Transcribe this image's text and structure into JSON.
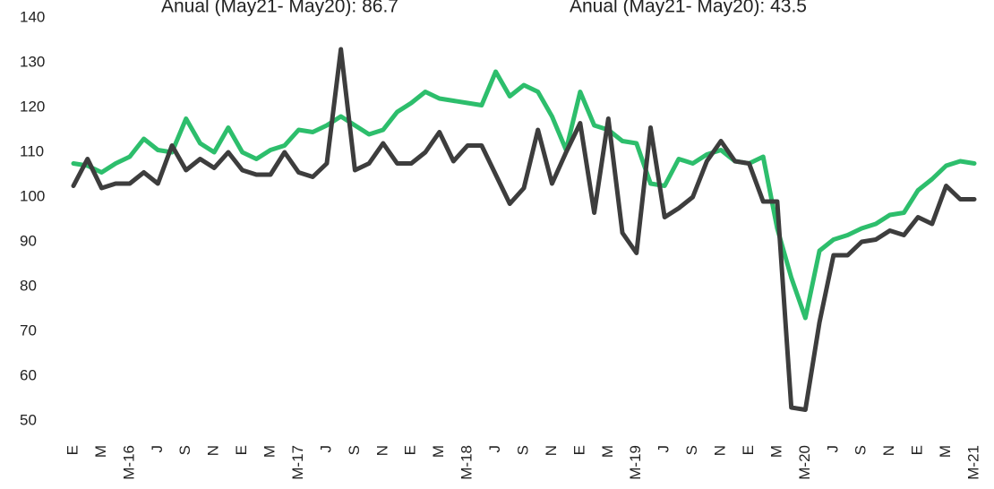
{
  "chart_data": {
    "type": "line",
    "annotations": [
      "Anual (May21- May20): 86.7",
      "Anual (May21- May20): 43.5"
    ],
    "categories": [
      "E",
      null,
      "M",
      null,
      "M-16",
      null,
      "J",
      null,
      "S",
      null,
      "N",
      null,
      "E",
      null,
      "M",
      null,
      "M-17",
      null,
      "J",
      null,
      "S",
      null,
      "N",
      null,
      "E",
      null,
      "M",
      null,
      "M-18",
      null,
      "J",
      null,
      "S",
      null,
      "N",
      null,
      "E",
      null,
      "M",
      null,
      "M-19",
      null,
      "J",
      null,
      "S",
      null,
      "N",
      null,
      "E",
      null,
      "M",
      null,
      "M-20",
      null,
      "J",
      null,
      "S",
      null,
      "N",
      null,
      "E",
      null,
      "M",
      null,
      "M-21"
    ],
    "series": [
      {
        "color": "#2dbe6c",
        "values": [
          107.5,
          107,
          105.5,
          107.5,
          109,
          113,
          110.5,
          110,
          117.5,
          112,
          110,
          115.5,
          110,
          108.5,
          110.5,
          111.5,
          115,
          114.5,
          116,
          118,
          116,
          114,
          115,
          119,
          121,
          123.5,
          122,
          121.5,
          121,
          120.5,
          128,
          122.5,
          125,
          123.5,
          118,
          110.5,
          123.5,
          116,
          115,
          112.5,
          112,
          103,
          102.5,
          108.5,
          107.5,
          109.5,
          110.5,
          108,
          107.5,
          109,
          93,
          82,
          73,
          88,
          90.5,
          91.5,
          93,
          94,
          96,
          96.5,
          101.5,
          104,
          107,
          108,
          107.5
        ]
      },
      {
        "color": "#3d3d3d",
        "values": [
          102.5,
          108.5,
          102,
          103,
          103,
          105.5,
          103,
          111.5,
          106,
          108.5,
          106.5,
          110,
          106,
          105,
          105,
          110,
          105.5,
          104.5,
          107.5,
          133,
          106,
          107.5,
          112,
          107.5,
          107.5,
          110,
          114.5,
          108,
          111.5,
          111.5,
          105,
          98.5,
          102,
          115,
          103,
          110,
          116.5,
          96.5,
          117.5,
          92,
          87.5,
          115.5,
          95.5,
          97.5,
          100,
          108,
          112.5,
          108,
          107.5,
          99,
          99,
          53,
          52.5,
          72,
          87,
          87,
          90,
          90.5,
          92.5,
          91.5,
          95.5,
          94,
          102.5,
          99.5,
          99.5
        ]
      }
    ],
    "ylim": [
      50,
      140
    ],
    "yticks": [
      50,
      60,
      70,
      80,
      90,
      100,
      110,
      120,
      130,
      140
    ],
    "grid": false
  }
}
